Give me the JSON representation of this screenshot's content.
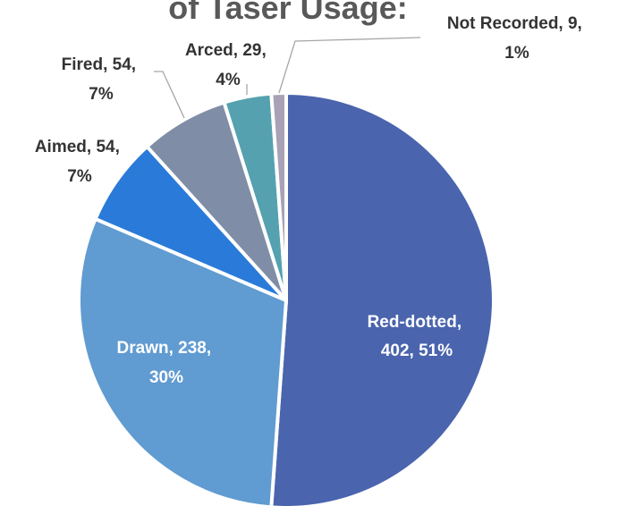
{
  "chart_data": {
    "type": "pie",
    "title": "of Taser Usage:",
    "categories": [
      "Red-dotted",
      "Drawn",
      "Aimed",
      "Fired",
      "Arced",
      "Not Recorded"
    ],
    "values": [
      402,
      238,
      54,
      54,
      29,
      9
    ],
    "percents": [
      "51%",
      "30%",
      "7%",
      "7%",
      "4%",
      "1%"
    ],
    "colors": [
      "#4a64ae",
      "#609bd1",
      "#2a7ad9",
      "#7f8ea6",
      "#55a1b0",
      "#a9a1b5"
    ],
    "start_angle_deg": 0,
    "direction": "clockwise",
    "legend": "none",
    "data_labels": [
      {
        "line1": "Red-dotted,",
        "line2": "402, 51%"
      },
      {
        "line1": "Drawn, 238,",
        "line2": "30%"
      },
      {
        "line1": "Aimed, 54,",
        "line2": "7%"
      },
      {
        "line1": "Fired, 54,",
        "line2": "7%"
      },
      {
        "line1": "Arced, 29,",
        "line2": "4%"
      },
      {
        "line1": "Not Recorded, 9,",
        "line2": "1%"
      }
    ]
  }
}
